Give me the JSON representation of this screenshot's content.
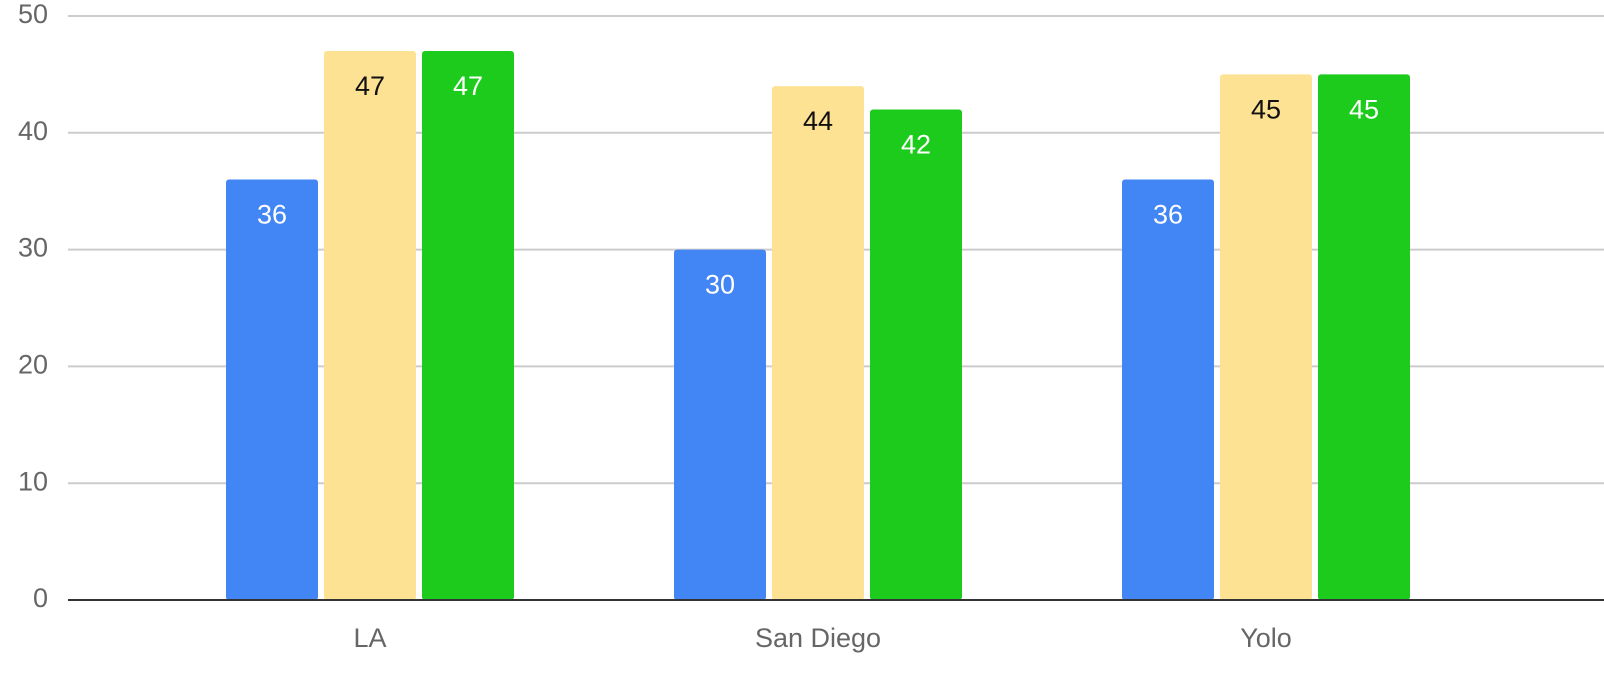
{
  "chart_data": {
    "type": "bar",
    "categories": [
      "LA",
      "San Diego",
      "Yolo"
    ],
    "series": [
      {
        "color": "#4285f4",
        "values": [
          36,
          30,
          36
        ]
      },
      {
        "color": "#fde293",
        "values": [
          47,
          44,
          45
        ]
      },
      {
        "color": "#1ccb1c",
        "values": [
          47,
          42,
          45
        ]
      }
    ],
    "ylim": [
      0,
      50
    ],
    "yticks": [
      0,
      10,
      20,
      30,
      40,
      50
    ],
    "grid": true
  }
}
